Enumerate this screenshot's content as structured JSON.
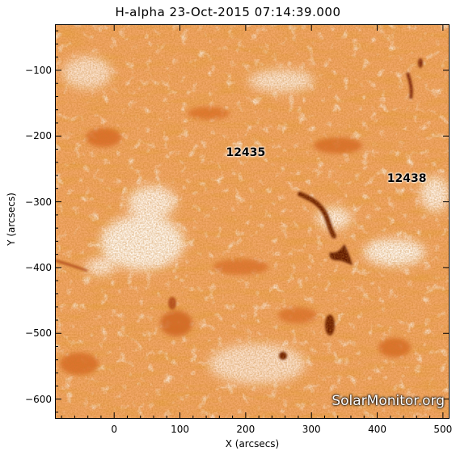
{
  "title": "H-alpha 23-Oct-2015 07:14:39.000",
  "axes": {
    "x_label": "X (arcsecs)",
    "y_label": "Y (arcsecs)",
    "x_range": [
      -90,
      510
    ],
    "y_range": [
      -630,
      -30
    ],
    "x_ticks": [
      {
        "value": 0,
        "label": "0"
      },
      {
        "value": 100,
        "label": "100"
      },
      {
        "value": 200,
        "label": "200"
      },
      {
        "value": 300,
        "label": "300"
      },
      {
        "value": 400,
        "label": "400"
      },
      {
        "value": 500,
        "label": "500"
      }
    ],
    "y_ticks": [
      {
        "value": -100,
        "label": "−100"
      },
      {
        "value": -200,
        "label": "−200"
      },
      {
        "value": -300,
        "label": "−300"
      },
      {
        "value": -400,
        "label": "−400"
      },
      {
        "value": -500,
        "label": "−500"
      },
      {
        "value": -600,
        "label": "−600"
      }
    ]
  },
  "regions": [
    {
      "label": "12435",
      "x": 200,
      "y": -225
    },
    {
      "label": "12438",
      "x": 445,
      "y": -265
    }
  ],
  "watermark": "SolarMonitor.org",
  "colors": {
    "background_chromosphere": "#f7b27a",
    "plage_bright": "#fff6ec",
    "filament_dark": "#6a1a04",
    "mid_tone": "#e3742c"
  }
}
